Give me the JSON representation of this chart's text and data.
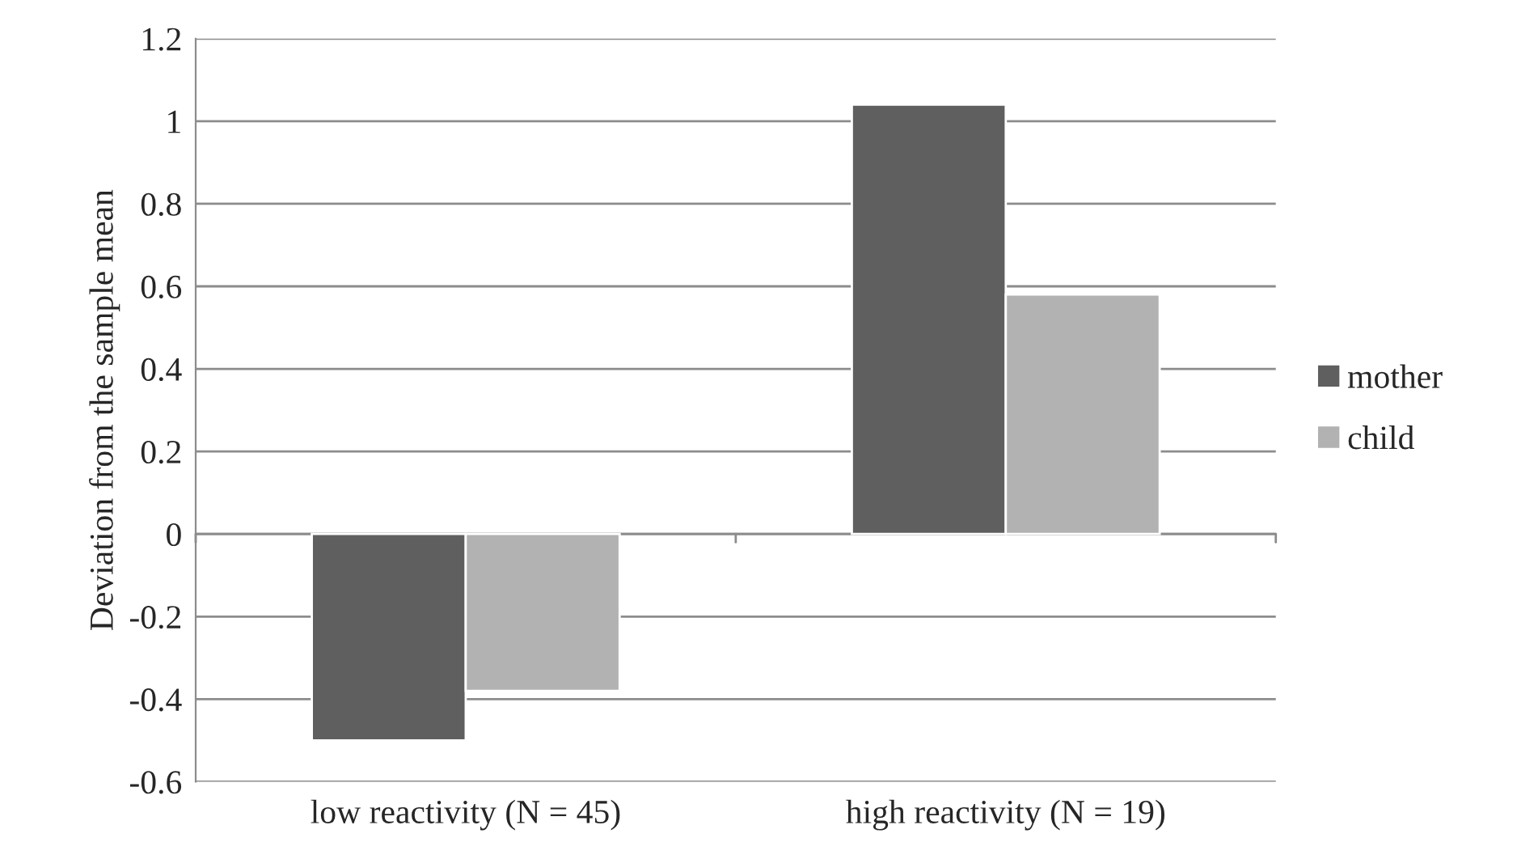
{
  "chart_data": {
    "type": "bar",
    "ylabel": "Deviation from the sample mean",
    "categories": [
      "low reactivity (N = 45)",
      "high reactivity (N = 19)"
    ],
    "series": [
      {
        "name": "mother",
        "color": "#5f5f5f",
        "values": [
          -0.5,
          1.04
        ]
      },
      {
        "name": "child",
        "color": "#b2b2b2",
        "values": [
          -0.38,
          0.58
        ]
      }
    ],
    "ylim": [
      -0.6,
      1.2
    ],
    "yticks": [
      {
        "value": -0.6,
        "label": "-0.6"
      },
      {
        "value": -0.4,
        "label": "-0.4"
      },
      {
        "value": -0.2,
        "label": "-0.2"
      },
      0,
      0.2,
      0.4,
      0.6,
      0.8,
      1,
      1.2
    ],
    "grid": "y",
    "legend": "right"
  }
}
